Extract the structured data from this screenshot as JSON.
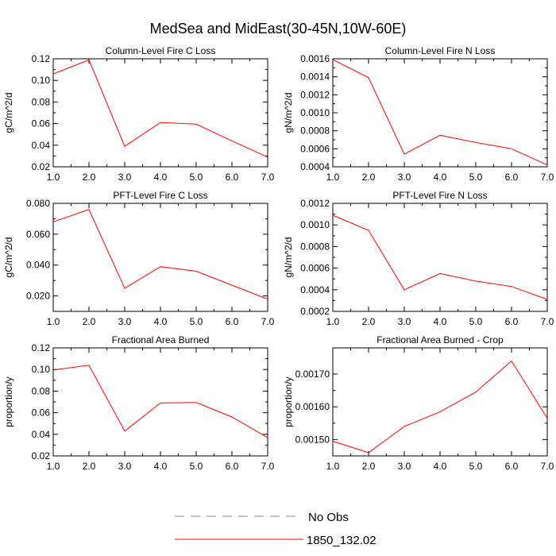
{
  "figure_title": "MedSea and MidEast(30-45N,10W-60E)",
  "colors": {
    "model": "#ff0000",
    "obs": "#8080b0",
    "frame": "#000000"
  },
  "legend": {
    "items": [
      {
        "label": "No Obs",
        "style": "dashed"
      },
      {
        "label": "1850_132.02",
        "style": "solid"
      }
    ]
  },
  "chart_data": [
    {
      "type": "line",
      "title": "Column-Level Fire C Loss",
      "ylabel": "gC/m^2/d",
      "xlim": [
        1,
        7
      ],
      "ylim": [
        0.02,
        0.12
      ],
      "xticks": [
        "1.0",
        "2.0",
        "3.0",
        "4.0",
        "5.0",
        "6.0",
        "7.0"
      ],
      "yticks": [
        {
          "value": 0.02,
          "label": "0.02"
        },
        {
          "value": 0.04,
          "label": "0.04"
        },
        {
          "value": 0.06,
          "label": "0.06"
        },
        {
          "value": 0.08,
          "label": "0.08"
        },
        {
          "value": 0.1,
          "label": "0.10"
        },
        {
          "value": 0.12,
          "label": "0.12"
        }
      ],
      "series": [
        {
          "name": "1850_132.02",
          "x": [
            1,
            2,
            3,
            4,
            5,
            6,
            7
          ],
          "y": [
            0.106,
            0.119,
            0.039,
            0.061,
            0.0595,
            0.044,
            0.029
          ]
        }
      ]
    },
    {
      "type": "line",
      "title": "Column-Level Fire N Loss",
      "ylabel": "gN/m^2/d",
      "xlim": [
        1,
        7
      ],
      "ylim": [
        0.0004,
        0.0016
      ],
      "xticks": [
        "1.0",
        "2.0",
        "3.0",
        "4.0",
        "5.0",
        "6.0",
        "7.0"
      ],
      "yticks": [
        {
          "value": 0.0004,
          "label": "0.0004"
        },
        {
          "value": 0.0006,
          "label": "0.0006"
        },
        {
          "value": 0.0008,
          "label": "0.0008"
        },
        {
          "value": 0.001,
          "label": "0.0010"
        },
        {
          "value": 0.0012,
          "label": "0.0012"
        },
        {
          "value": 0.0014,
          "label": "0.0014"
        },
        {
          "value": 0.0016,
          "label": "0.0016"
        }
      ],
      "series": [
        {
          "name": "1850_132.02",
          "x": [
            1,
            2,
            3,
            4,
            5,
            6,
            7
          ],
          "y": [
            0.00159,
            0.00139,
            0.00054,
            0.00075,
            0.00067,
            0.0006,
            0.00042
          ]
        }
      ]
    },
    {
      "type": "line",
      "title": "PFT-Level Fire C Loss",
      "ylabel": "gC/m^2/d",
      "xlim": [
        1,
        7
      ],
      "ylim": [
        0.01,
        0.08
      ],
      "xticks": [
        "1.0",
        "2.0",
        "3.0",
        "4.0",
        "5.0",
        "6.0",
        "7.0"
      ],
      "yticks": [
        {
          "value": 0.02,
          "label": "0.020"
        },
        {
          "value": 0.04,
          "label": "0.040"
        },
        {
          "value": 0.06,
          "label": "0.060"
        },
        {
          "value": 0.08,
          "label": "0.080"
        }
      ],
      "series": [
        {
          "name": "1850_132.02",
          "x": [
            1,
            2,
            3,
            4,
            5,
            6,
            7
          ],
          "y": [
            0.068,
            0.076,
            0.025,
            0.039,
            0.036,
            0.027,
            0.018
          ]
        }
      ]
    },
    {
      "type": "line",
      "title": "PFT-Level Fire N Loss",
      "ylabel": "gN/m^2/d",
      "xlim": [
        1,
        7
      ],
      "ylim": [
        0.0002,
        0.0012
      ],
      "xticks": [
        "1.0",
        "2.0",
        "3.0",
        "4.0",
        "5.0",
        "6.0",
        "7.0"
      ],
      "yticks": [
        {
          "value": 0.0002,
          "label": "0.0002"
        },
        {
          "value": 0.0004,
          "label": "0.0004"
        },
        {
          "value": 0.0006,
          "label": "0.0006"
        },
        {
          "value": 0.0008,
          "label": "0.0008"
        },
        {
          "value": 0.001,
          "label": "0.0010"
        },
        {
          "value": 0.0012,
          "label": "0.0012"
        }
      ],
      "series": [
        {
          "name": "1850_132.02",
          "x": [
            1,
            2,
            3,
            4,
            5,
            6,
            7
          ],
          "y": [
            0.00109,
            0.00095,
            0.0004,
            0.00055,
            0.00048,
            0.00043,
            0.00031
          ]
        }
      ]
    },
    {
      "type": "line",
      "title": "Fractional Area Burned",
      "ylabel": "proportion/y",
      "xlim": [
        1,
        7
      ],
      "ylim": [
        0.02,
        0.12
      ],
      "xticks": [
        "1.0",
        "2.0",
        "3.0",
        "4.0",
        "5.0",
        "6.0",
        "7.0"
      ],
      "yticks": [
        {
          "value": 0.02,
          "label": "0.02"
        },
        {
          "value": 0.04,
          "label": "0.04"
        },
        {
          "value": 0.06,
          "label": "0.06"
        },
        {
          "value": 0.08,
          "label": "0.08"
        },
        {
          "value": 0.1,
          "label": "0.10"
        },
        {
          "value": 0.12,
          "label": "0.12"
        }
      ],
      "series": [
        {
          "name": "1850_132.02",
          "x": [
            1,
            2,
            3,
            4,
            5,
            6,
            7
          ],
          "y": [
            0.0995,
            0.104,
            0.043,
            0.069,
            0.0695,
            0.056,
            0.037
          ]
        }
      ]
    },
    {
      "type": "line",
      "title": "Fractional Area Burned - Crop",
      "ylabel": "proportion/y",
      "xlim": [
        1,
        7
      ],
      "ylim": [
        0.00145,
        0.00178
      ],
      "xticks": [
        "1.0",
        "2.0",
        "3.0",
        "4.0",
        "5.0",
        "6.0",
        "7.0"
      ],
      "yticks": [
        {
          "value": 0.0015,
          "label": "0.00150"
        },
        {
          "value": 0.0016,
          "label": "0.00160"
        },
        {
          "value": 0.0017,
          "label": "0.00170"
        }
      ],
      "series": [
        {
          "name": "1850_132.02",
          "x": [
            1,
            2,
            3,
            4,
            5,
            6,
            7
          ],
          "y": [
            0.001495,
            0.00146,
            0.00154,
            0.001585,
            0.001645,
            0.00174,
            0.001565
          ]
        }
      ]
    }
  ]
}
